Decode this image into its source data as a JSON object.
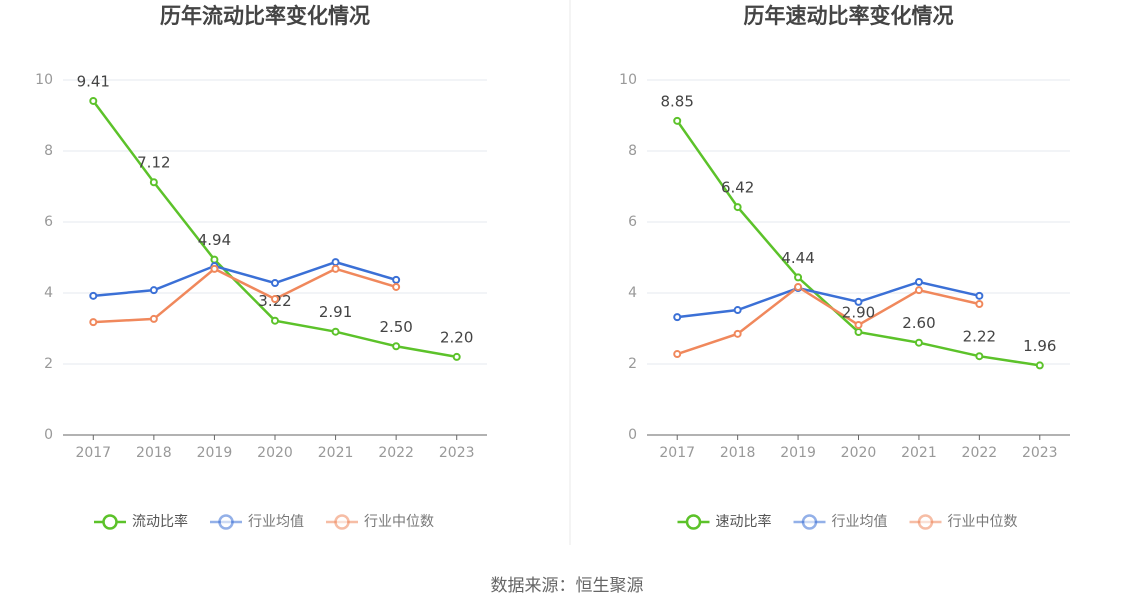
{
  "source": "数据来源：恒生聚源",
  "chart_data": [
    {
      "type": "line",
      "title": "历年流动比率变化情况",
      "categories": [
        "2017",
        "2018",
        "2019",
        "2020",
        "2021",
        "2022",
        "2023"
      ],
      "ylim": [
        0,
        10
      ],
      "yticks": [
        0,
        2,
        4,
        6,
        8,
        10
      ],
      "grid": true,
      "legend": "bottom",
      "series": [
        {
          "name": "流动比率",
          "color": "#5cc22a",
          "values": [
            9.41,
            7.12,
            4.94,
            3.22,
            2.91,
            2.5,
            2.2
          ],
          "value_labels": [
            "9.41",
            "7.12",
            "4.94",
            "3.22",
            "2.91",
            "2.50",
            "2.20"
          ]
        },
        {
          "name": "行业均值",
          "color": "#3b70d6",
          "values": [
            3.92,
            4.08,
            4.76,
            4.28,
            4.87,
            4.37,
            null
          ]
        },
        {
          "name": "行业中位数",
          "color": "#f0885c",
          "values": [
            3.18,
            3.27,
            4.68,
            3.83,
            4.68,
            4.17,
            null
          ]
        }
      ]
    },
    {
      "type": "line",
      "title": "历年速动比率变化情况",
      "categories": [
        "2017",
        "2018",
        "2019",
        "2020",
        "2021",
        "2022",
        "2023"
      ],
      "ylim": [
        0,
        10
      ],
      "yticks": [
        0,
        2,
        4,
        6,
        8,
        10
      ],
      "grid": true,
      "legend": "bottom",
      "series": [
        {
          "name": "速动比率",
          "color": "#5cc22a",
          "values": [
            8.85,
            6.42,
            4.44,
            2.9,
            2.6,
            2.22,
            1.96
          ],
          "value_labels": [
            "8.85",
            "6.42",
            "4.44",
            "2.90",
            "2.60",
            "2.22",
            "1.96"
          ]
        },
        {
          "name": "行业均值",
          "color": "#3b70d6",
          "values": [
            3.32,
            3.52,
            4.14,
            3.75,
            4.31,
            3.92,
            null
          ]
        },
        {
          "name": "行业中位数",
          "color": "#f0885c",
          "values": [
            2.28,
            2.85,
            4.17,
            3.1,
            4.08,
            3.69,
            null
          ]
        }
      ]
    }
  ]
}
